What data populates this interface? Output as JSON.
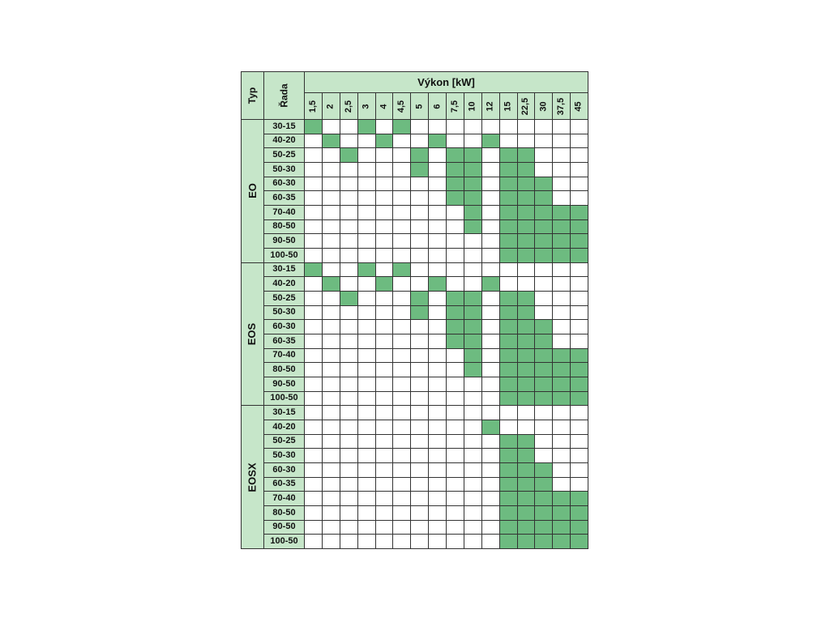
{
  "table": {
    "header": {
      "type_label": "Typ",
      "series_label": "Řada",
      "power_label": "Výkon [kW]"
    },
    "power_columns": [
      "1,5",
      "2",
      "2,5",
      "3",
      "4",
      "4,5",
      "5",
      "6",
      "7,5",
      "10",
      "12",
      "15",
      "22,5",
      "30",
      "37,5",
      "45"
    ],
    "groups": [
      {
        "type": "EO",
        "rows": [
          {
            "series": "30-15",
            "available": [
              "1,5",
              "3",
              "4,5"
            ]
          },
          {
            "series": "40-20",
            "available": [
              "2",
              "4",
              "6",
              "12"
            ]
          },
          {
            "series": "50-25",
            "available": [
              "2,5",
              "5",
              "7,5",
              "10",
              "15",
              "22,5"
            ]
          },
          {
            "series": "50-30",
            "available": [
              "5",
              "7,5",
              "10",
              "15",
              "22,5"
            ]
          },
          {
            "series": "60-30",
            "available": [
              "7,5",
              "10",
              "15",
              "22,5",
              "30"
            ]
          },
          {
            "series": "60-35",
            "available": [
              "7,5",
              "10",
              "15",
              "22,5",
              "30"
            ]
          },
          {
            "series": "70-40",
            "available": [
              "10",
              "15",
              "22,5",
              "30",
              "37,5",
              "45"
            ]
          },
          {
            "series": "80-50",
            "available": [
              "10",
              "15",
              "22,5",
              "30",
              "37,5",
              "45"
            ]
          },
          {
            "series": "90-50",
            "available": [
              "15",
              "22,5",
              "30",
              "37,5",
              "45"
            ]
          },
          {
            "series": "100-50",
            "available": [
              "15",
              "22,5",
              "30",
              "37,5",
              "45"
            ]
          }
        ]
      },
      {
        "type": "EOS",
        "rows": [
          {
            "series": "30-15",
            "available": [
              "1,5",
              "3",
              "4,5"
            ]
          },
          {
            "series": "40-20",
            "available": [
              "2",
              "4",
              "6",
              "12"
            ]
          },
          {
            "series": "50-25",
            "available": [
              "2,5",
              "5",
              "7,5",
              "10",
              "15",
              "22,5"
            ]
          },
          {
            "series": "50-30",
            "available": [
              "5",
              "7,5",
              "10",
              "15",
              "22,5"
            ]
          },
          {
            "series": "60-30",
            "available": [
              "7,5",
              "10",
              "15",
              "22,5",
              "30"
            ]
          },
          {
            "series": "60-35",
            "available": [
              "7,5",
              "10",
              "15",
              "22,5",
              "30"
            ]
          },
          {
            "series": "70-40",
            "available": [
              "10",
              "15",
              "22,5",
              "30",
              "37,5",
              "45"
            ]
          },
          {
            "series": "80-50",
            "available": [
              "10",
              "15",
              "22,5",
              "30",
              "37,5",
              "45"
            ]
          },
          {
            "series": "90-50",
            "available": [
              "15",
              "22,5",
              "30",
              "37,5",
              "45"
            ]
          },
          {
            "series": "100-50",
            "available": [
              "15",
              "22,5",
              "30",
              "37,5",
              "45"
            ]
          }
        ]
      },
      {
        "type": "EOSX",
        "rows": [
          {
            "series": "30-15",
            "available": []
          },
          {
            "series": "40-20",
            "available": [
              "12"
            ]
          },
          {
            "series": "50-25",
            "available": [
              "15",
              "22,5"
            ]
          },
          {
            "series": "50-30",
            "available": [
              "15",
              "22,5"
            ]
          },
          {
            "series": "60-30",
            "available": [
              "15",
              "22,5",
              "30"
            ]
          },
          {
            "series": "60-35",
            "available": [
              "15",
              "22,5",
              "30"
            ]
          },
          {
            "series": "70-40",
            "available": [
              "15",
              "22,5",
              "30",
              "37,5",
              "45"
            ]
          },
          {
            "series": "80-50",
            "available": [
              "15",
              "22,5",
              "30",
              "37,5",
              "45"
            ]
          },
          {
            "series": "90-50",
            "available": [
              "15",
              "22,5",
              "30",
              "37,5",
              "45"
            ]
          },
          {
            "series": "100-50",
            "available": [
              "15",
              "22,5",
              "30",
              "37,5",
              "45"
            ]
          }
        ]
      }
    ],
    "colors": {
      "header_fill": "#c6e6c9",
      "available_fill": "#6dbb80",
      "empty_fill": "#ffffff",
      "grid_line": "#333333"
    }
  }
}
